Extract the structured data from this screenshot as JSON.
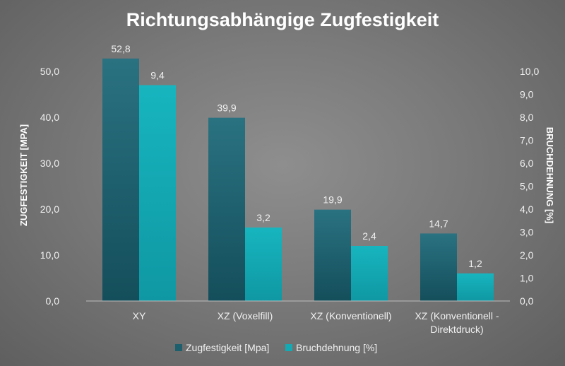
{
  "chart_data": {
    "type": "bar",
    "title": "Richtungsabhängige Zugfestigkeit",
    "categories": [
      "XY",
      "XZ (Voxelfill)",
      "XZ (Konventionell)",
      "XZ (Konventionell - Direktdruck)"
    ],
    "category_lines": [
      [
        "XY"
      ],
      [
        "XZ (Voxelfill)"
      ],
      [
        "XZ (Konventionell)"
      ],
      [
        "XZ (Konventionell -",
        "Direktdruck)"
      ]
    ],
    "series": [
      {
        "name": "Zugfestigkeit [Mpa]",
        "axis": "left",
        "values": [
          52.8,
          39.9,
          19.9,
          14.7
        ],
        "labels": [
          "52,8",
          "39,9",
          "19,9",
          "14,7"
        ],
        "color": "#1d5f6c"
      },
      {
        "name": "Bruchdehnung [%]",
        "axis": "right",
        "values": [
          9.4,
          3.2,
          2.4,
          1.2
        ],
        "labels": [
          "9,4",
          "3,2",
          "2,4",
          "1,2"
        ],
        "color": "#14a9b3"
      }
    ],
    "y_left": {
      "label": "ZUGFESTIGKEIT [MPA]",
      "min": 0,
      "max": 55,
      "ticks": [
        0,
        10,
        20,
        30,
        40,
        50
      ],
      "tick_labels": [
        "0,0",
        "10,0",
        "20,0",
        "30,0",
        "40,0",
        "50,0"
      ]
    },
    "y_right": {
      "label": "BRUCHDEHNUNG [%]",
      "min": 0,
      "max": 10,
      "ticks": [
        0,
        1,
        2,
        3,
        4,
        5,
        6,
        7,
        8,
        9,
        10
      ],
      "tick_labels": [
        "0,0",
        "1,0",
        "2,0",
        "3,0",
        "4,0",
        "5,0",
        "6,0",
        "7,0",
        "8,0",
        "9,0",
        "10,0"
      ]
    },
    "legend": {
      "position": "bottom"
    },
    "grid": false
  }
}
